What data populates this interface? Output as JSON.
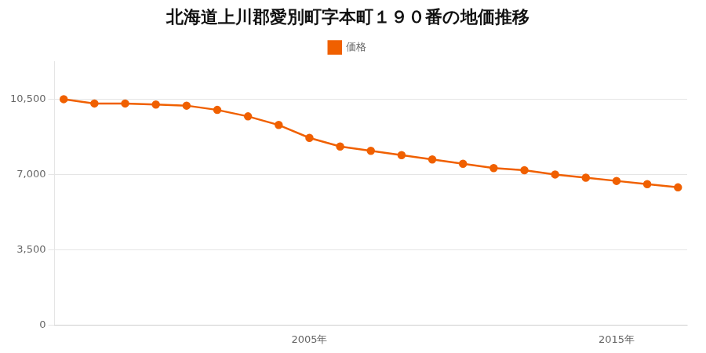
{
  "chart_data": {
    "type": "line",
    "title": "北海道上川郡愛別町字本町１９０番の地価推移",
    "x": [
      1997,
      1998,
      1999,
      2000,
      2001,
      2002,
      2003,
      2004,
      2005,
      2006,
      2007,
      2008,
      2009,
      2010,
      2011,
      2012,
      2013,
      2014,
      2015,
      2016,
      2017
    ],
    "series": [
      {
        "name": "価格",
        "color": "#f06000",
        "marker": "circle",
        "values": [
          10500,
          10300,
          10300,
          10250,
          10200,
          10000,
          9700,
          9300,
          8700,
          8300,
          8100,
          7900,
          7700,
          7500,
          7300,
          7200,
          7000,
          6850,
          6700,
          6550,
          6400
        ]
      }
    ],
    "xlim": [
      1996.7,
      2017.3
    ],
    "xticks": [
      {
        "value": 2005,
        "label": "2005年"
      },
      {
        "value": 2015,
        "label": "2015年"
      }
    ],
    "ylim": [
      0,
      12250
    ],
    "yticks": [
      0,
      {
        "value": 3500,
        "label": "3,500"
      },
      {
        "value": 7000,
        "label": "7,000"
      },
      {
        "value": 10500,
        "label": "10,500"
      }
    ],
    "grid": "y",
    "legend": "top"
  }
}
